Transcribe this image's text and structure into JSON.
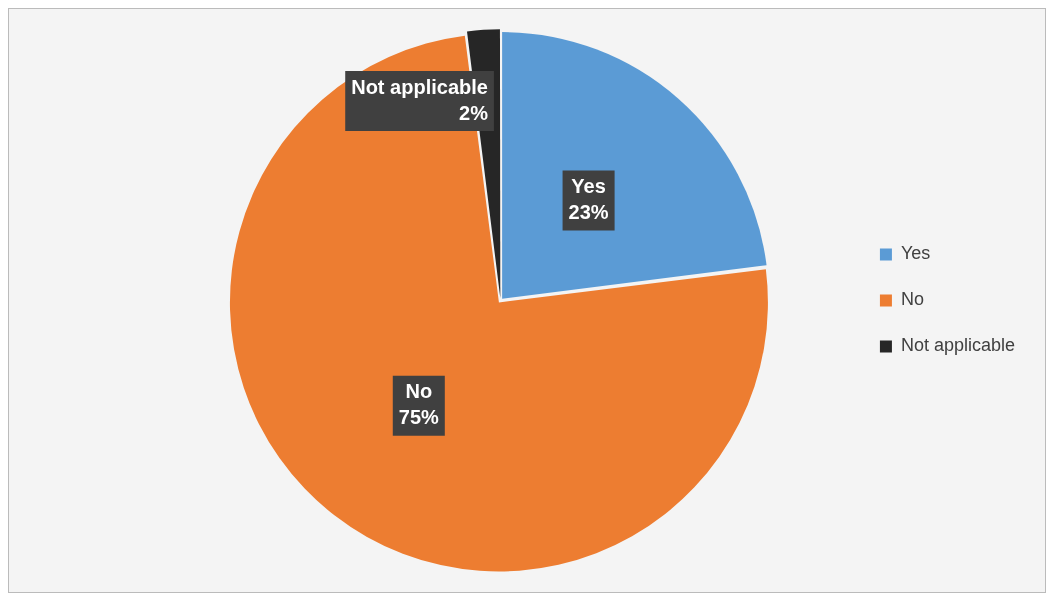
{
  "chart_data": {
    "type": "pie",
    "categories": [
      "Yes",
      "No",
      "Not applicable"
    ],
    "values": [
      23,
      75,
      2
    ],
    "value_labels": [
      "23%",
      "75%",
      "2%"
    ],
    "colors": [
      "#5b9bd5",
      "#ed7d31",
      "#262626"
    ],
    "legend": "right"
  }
}
